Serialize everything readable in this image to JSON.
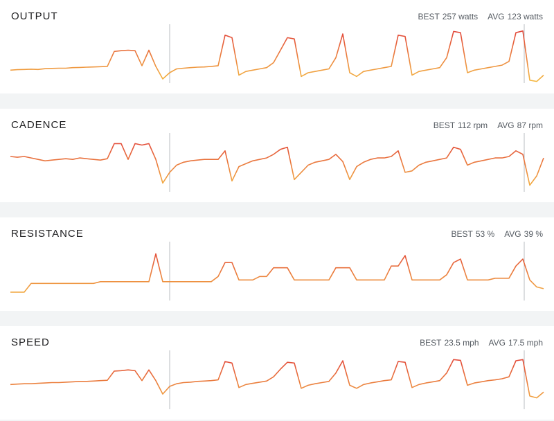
{
  "line_colors": [
    "#e2463a",
    "#f5c043"
  ],
  "panels": [
    {
      "title": "OUTPUT",
      "best_label": "BEST",
      "best": "257 watts",
      "avg_label": "AVG",
      "avg": "123 watts",
      "chart": {
        "type": "line",
        "ylim": [
          40,
          270
        ],
        "values": [
          100,
          102,
          103,
          104,
          103,
          106,
          107,
          108,
          108,
          110,
          111,
          112,
          113,
          114,
          115,
          175,
          178,
          180,
          178,
          118,
          180,
          115,
          65,
          90,
          105,
          108,
          110,
          112,
          113,
          115,
          118,
          240,
          230,
          80,
          95,
          100,
          105,
          110,
          130,
          180,
          230,
          225,
          75,
          90,
          95,
          100,
          105,
          150,
          245,
          90,
          75,
          95,
          100,
          105,
          110,
          115,
          240,
          235,
          80,
          95,
          100,
          105,
          110,
          150,
          255,
          250,
          90,
          100,
          105,
          110,
          115,
          120,
          135,
          250,
          257,
          60,
          55,
          80
        ]
      }
    },
    {
      "title": "CADENCE",
      "best_label": "BEST",
      "best": "112 rpm",
      "avg_label": "AVG",
      "avg": "87 rpm",
      "chart": {
        "type": "line",
        "ylim": [
          40,
          120
        ],
        "values": [
          92,
          91,
          92,
          90,
          88,
          86,
          87,
          88,
          89,
          88,
          90,
          89,
          88,
          87,
          89,
          110,
          110,
          88,
          110,
          108,
          110,
          88,
          55,
          70,
          80,
          84,
          86,
          87,
          88,
          88,
          88,
          100,
          58,
          78,
          82,
          86,
          88,
          90,
          95,
          102,
          105,
          60,
          70,
          80,
          84,
          86,
          88,
          95,
          85,
          60,
          78,
          84,
          88,
          90,
          90,
          92,
          100,
          70,
          72,
          80,
          84,
          86,
          88,
          90,
          105,
          102,
          80,
          84,
          86,
          88,
          90,
          90,
          92,
          100,
          95,
          52,
          65,
          90
        ]
      }
    },
    {
      "title": "RESISTANCE",
      "best_label": "BEST",
      "best": "53 %",
      "avg_label": "AVG",
      "avg": "39 %",
      "chart": {
        "type": "line",
        "ylim": [
          25,
          58
        ],
        "values": [
          31,
          31,
          31,
          36,
          36,
          36,
          36,
          36,
          36,
          36,
          36,
          36,
          36,
          37,
          37,
          37,
          37,
          37,
          37,
          37,
          37,
          53,
          37,
          37,
          37,
          37,
          37,
          37,
          37,
          37,
          40,
          48,
          48,
          38,
          38,
          38,
          40,
          40,
          45,
          45,
          45,
          38,
          38,
          38,
          38,
          38,
          38,
          45,
          45,
          45,
          38,
          38,
          38,
          38,
          38,
          46,
          46,
          52,
          38,
          38,
          38,
          38,
          38,
          41,
          48,
          50,
          38,
          38,
          38,
          38,
          39,
          39,
          39,
          46,
          50,
          38,
          34,
          33
        ]
      }
    },
    {
      "title": "SPEED",
      "best_label": "BEST",
      "best": "23.5 mph",
      "avg_label": "AVG",
      "avg": "17.5 mph",
      "chart": {
        "type": "line",
        "ylim": [
          10,
          25
        ],
        "values": [
          17,
          17.1,
          17.2,
          17.2,
          17.3,
          17.4,
          17.5,
          17.5,
          17.6,
          17.7,
          17.8,
          17.8,
          17.9,
          18,
          18.1,
          20.5,
          20.6,
          20.8,
          20.6,
          18,
          20.8,
          18,
          14.5,
          16.5,
          17.2,
          17.5,
          17.6,
          17.8,
          17.9,
          18,
          18.2,
          23,
          22.6,
          16.2,
          17,
          17.3,
          17.6,
          17.9,
          19,
          21,
          22.8,
          22.6,
          16,
          16.8,
          17.2,
          17.5,
          17.8,
          20,
          23.2,
          16.8,
          16,
          17,
          17.4,
          17.7,
          18,
          18.2,
          23,
          22.8,
          16.2,
          17,
          17.4,
          17.7,
          18,
          20,
          23.5,
          23.3,
          16.8,
          17.4,
          17.7,
          18,
          18.2,
          18.5,
          19,
          23.2,
          23.5,
          14,
          13.5,
          15
        ]
      }
    }
  ]
}
